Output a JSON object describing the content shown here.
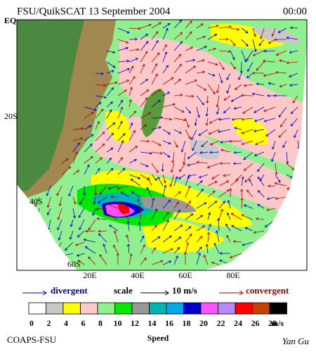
{
  "header": {
    "title": "FSU/QuikSCAT 13 September 2004",
    "time": "00:00"
  },
  "map": {
    "lat_labels": [
      "EQ",
      "20S",
      "40S",
      "60S"
    ],
    "lon_labels": [
      "20E",
      "40E",
      "60E",
      "80E"
    ]
  },
  "legend": {
    "divergent": "divergent",
    "scale": "scale",
    "scale_value": "10 m/s",
    "convergent": "convergent"
  },
  "colorbar": {
    "labels": [
      "0",
      "2",
      "4",
      "6",
      "8",
      "10",
      "12",
      "14",
      "16",
      "18",
      "20",
      "22",
      "24",
      "26",
      "28"
    ],
    "unit": "m/s",
    "colors": [
      "#ffffff",
      "#c8c8c8",
      "#ffff00",
      "#ffc8c8",
      "#90f090",
      "#00e800",
      "#989898",
      "#00b4b4",
      "#00a8e8",
      "#0000c8",
      "#ff50ff",
      "#b888ff",
      "#ff0000",
      "#c84000",
      "#000000"
    ]
  },
  "footer": {
    "left": "COAPS-FSU",
    "center": "Speed",
    "right": "Yan Gu"
  }
}
